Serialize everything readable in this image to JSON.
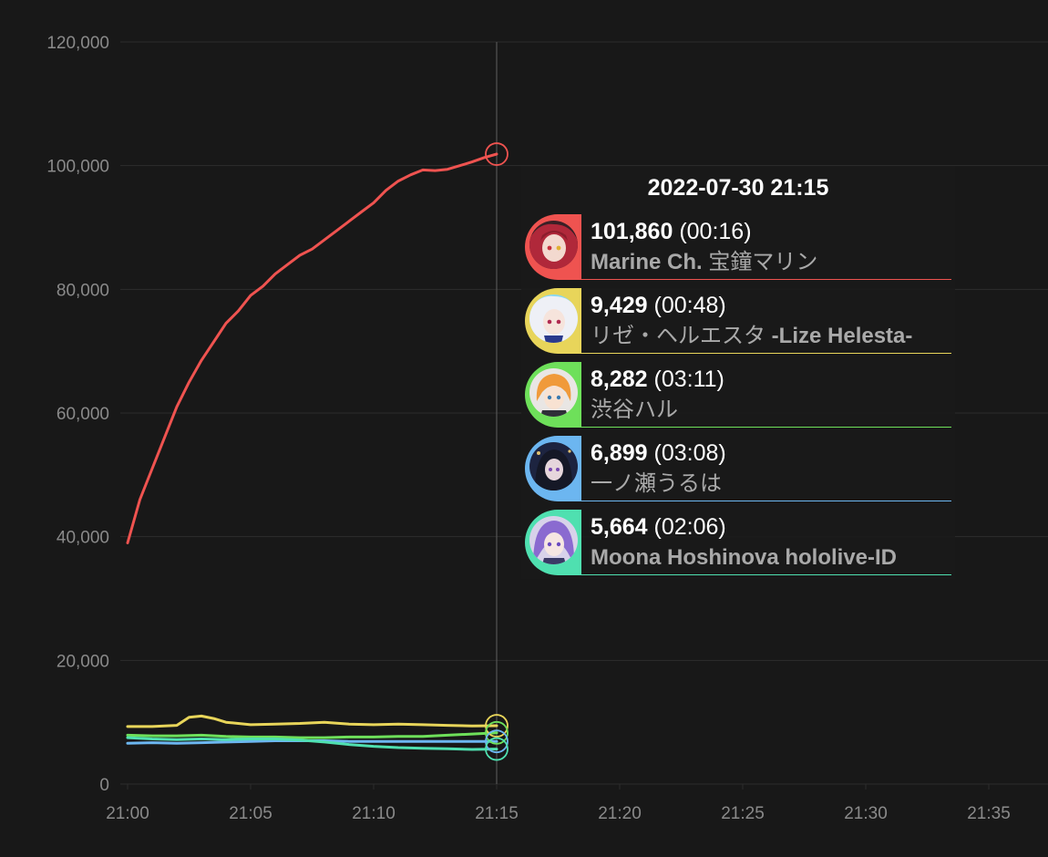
{
  "chart_data": {
    "type": "line",
    "title": "",
    "xlabel": "",
    "ylabel": "",
    "ylim": [
      0,
      120000
    ],
    "xlim": [
      "21:00",
      "21:37"
    ],
    "y_ticks": [
      "0",
      "20,000",
      "40,000",
      "60,000",
      "80,000",
      "100,000",
      "120,000"
    ],
    "x_ticks": [
      "21:00",
      "21:05",
      "21:10",
      "21:15",
      "21:20",
      "21:25",
      "21:30",
      "21:35"
    ],
    "grid": true,
    "legend": "tooltip at 21:15",
    "crosshair_x": "21:15",
    "series": [
      {
        "name": "Marine Ch. 宝鐘マリン",
        "color": "#ef5350",
        "x": [
          "21:00",
          "21:00:30",
          "21:01",
          "21:01:30",
          "21:02",
          "21:02:30",
          "21:03",
          "21:03:30",
          "21:04",
          "21:04:30",
          "21:05",
          "21:05:30",
          "21:06",
          "21:06:30",
          "21:07",
          "21:07:30",
          "21:08",
          "21:08:30",
          "21:09",
          "21:09:30",
          "21:10",
          "21:10:30",
          "21:11",
          "21:11:30",
          "21:12",
          "21:12:30",
          "21:13",
          "21:13:30",
          "21:14",
          "21:14:30",
          "21:15"
        ],
        "values": [
          39000,
          46000,
          51000,
          56000,
          61000,
          65000,
          68500,
          71500,
          74500,
          76500,
          79000,
          80500,
          82500,
          84000,
          85500,
          86500,
          88000,
          89500,
          91000,
          92500,
          94000,
          96000,
          97500,
          98500,
          99300,
          99200,
          99400,
          100000,
          100600,
          101300,
          101860
        ]
      },
      {
        "name": "リゼ・ヘルエスタ -Lize Helesta-",
        "color": "#e8d55a",
        "x": [
          "21:00",
          "21:01",
          "21:02",
          "21:02:30",
          "21:03",
          "21:03:30",
          "21:04",
          "21:05",
          "21:06",
          "21:07",
          "21:08",
          "21:09",
          "21:10",
          "21:11",
          "21:12",
          "21:13",
          "21:14",
          "21:15"
        ],
        "values": [
          9300,
          9300,
          9500,
          10800,
          11000,
          10600,
          10000,
          9600,
          9700,
          9800,
          10000,
          9700,
          9600,
          9700,
          9600,
          9500,
          9400,
          9429
        ]
      },
      {
        "name": "渋谷ハル",
        "color": "#6ee05a",
        "x": [
          "21:00",
          "21:01",
          "21:02",
          "21:03",
          "21:04",
          "21:05",
          "21:06",
          "21:07",
          "21:08",
          "21:09",
          "21:10",
          "21:11",
          "21:12",
          "21:13",
          "21:14",
          "21:15"
        ],
        "values": [
          7900,
          7800,
          7800,
          7900,
          7700,
          7600,
          7600,
          7500,
          7500,
          7600,
          7600,
          7700,
          7700,
          7900,
          8100,
          8282
        ]
      },
      {
        "name": "一ノ瀬うるは",
        "color": "#6cb6f0",
        "x": [
          "21:00",
          "21:01",
          "21:02",
          "21:03",
          "21:04",
          "21:05",
          "21:06",
          "21:07",
          "21:08",
          "21:09",
          "21:10",
          "21:11",
          "21:12",
          "21:13",
          "21:14",
          "21:15"
        ],
        "values": [
          6600,
          6700,
          6600,
          6700,
          6800,
          6900,
          7000,
          7000,
          7000,
          6900,
          6900,
          6900,
          6900,
          6900,
          6900,
          6899
        ]
      },
      {
        "name": "Moona Hoshinova hololive-ID",
        "color": "#4fe0b0",
        "x": [
          "21:00",
          "21:01",
          "21:02",
          "21:03",
          "21:04",
          "21:05",
          "21:06",
          "21:07",
          "21:08",
          "21:09",
          "21:10",
          "21:11",
          "21:12",
          "21:13",
          "21:14",
          "21:15"
        ],
        "values": [
          7500,
          7300,
          7200,
          7300,
          7200,
          7300,
          7300,
          7100,
          6800,
          6400,
          6100,
          5900,
          5800,
          5700,
          5600,
          5664
        ]
      }
    ]
  },
  "tooltip": {
    "title": "2022-07-30 21:15",
    "entries": [
      {
        "value": "101,860",
        "duration": "(00:16)",
        "name_latin": "Marine Ch.",
        "name_rest": " 宝鐘マリン",
        "color": "#ef5350",
        "avatar_icon": "marine-avatar-icon"
      },
      {
        "value": "9,429",
        "duration": "(00:48)",
        "name_latin": "",
        "name_rest": "リゼ・ヘルエスタ ",
        "name_tail": "-Lize Helesta-",
        "color": "#e8d55a",
        "avatar_icon": "lize-avatar-icon"
      },
      {
        "value": "8,282",
        "duration": "(03:11)",
        "name_latin": "",
        "name_rest": "渋谷ハル",
        "color": "#6ee05a",
        "avatar_icon": "haru-avatar-icon"
      },
      {
        "value": "6,899",
        "duration": "(03:08)",
        "name_latin": "",
        "name_rest": "一ノ瀬うるは",
        "color": "#6cb6f0",
        "avatar_icon": "uruha-avatar-icon"
      },
      {
        "value": "5,664",
        "duration": "(02:06)",
        "name_latin": "Moona Hoshinova hololive-ID",
        "name_rest": "",
        "color": "#4fe0b0",
        "avatar_icon": "moona-avatar-icon"
      }
    ]
  }
}
